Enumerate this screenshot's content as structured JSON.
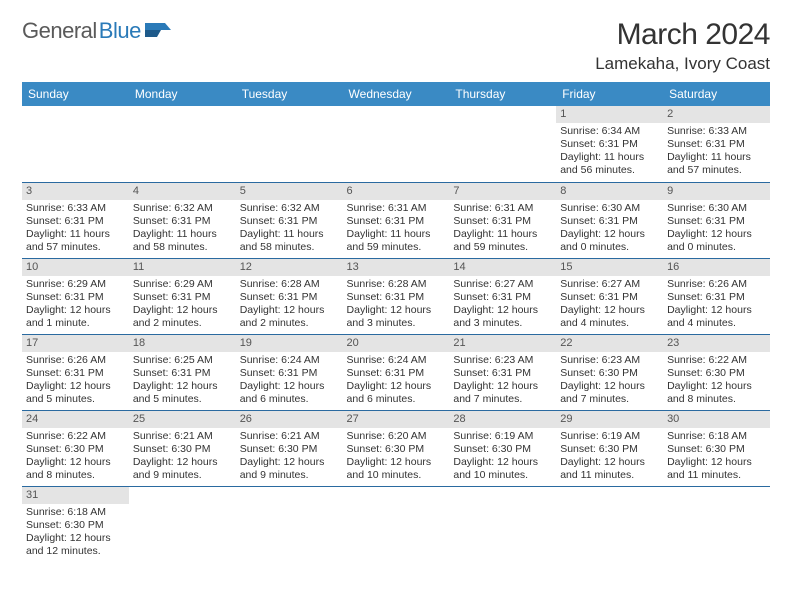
{
  "logo": {
    "part1": "General",
    "part2": "Blue"
  },
  "title": "March 2024",
  "location": "Lamekaha, Ivory Coast",
  "weekdays": [
    "Sunday",
    "Monday",
    "Tuesday",
    "Wednesday",
    "Thursday",
    "Friday",
    "Saturday"
  ],
  "colors": {
    "header_bg": "#3a8ac4",
    "header_text": "#ffffff",
    "daynum_bg": "#e4e4e4",
    "row_border": "#2a6aa0",
    "logo_gray": "#5a5a5a",
    "logo_blue": "#2a7ab8"
  },
  "weeks": [
    [
      null,
      null,
      null,
      null,
      null,
      {
        "n": "1",
        "sr": "Sunrise: 6:34 AM",
        "ss": "Sunset: 6:31 PM",
        "dl": "Daylight: 11 hours and 56 minutes."
      },
      {
        "n": "2",
        "sr": "Sunrise: 6:33 AM",
        "ss": "Sunset: 6:31 PM",
        "dl": "Daylight: 11 hours and 57 minutes."
      }
    ],
    [
      {
        "n": "3",
        "sr": "Sunrise: 6:33 AM",
        "ss": "Sunset: 6:31 PM",
        "dl": "Daylight: 11 hours and 57 minutes."
      },
      {
        "n": "4",
        "sr": "Sunrise: 6:32 AM",
        "ss": "Sunset: 6:31 PM",
        "dl": "Daylight: 11 hours and 58 minutes."
      },
      {
        "n": "5",
        "sr": "Sunrise: 6:32 AM",
        "ss": "Sunset: 6:31 PM",
        "dl": "Daylight: 11 hours and 58 minutes."
      },
      {
        "n": "6",
        "sr": "Sunrise: 6:31 AM",
        "ss": "Sunset: 6:31 PM",
        "dl": "Daylight: 11 hours and 59 minutes."
      },
      {
        "n": "7",
        "sr": "Sunrise: 6:31 AM",
        "ss": "Sunset: 6:31 PM",
        "dl": "Daylight: 11 hours and 59 minutes."
      },
      {
        "n": "8",
        "sr": "Sunrise: 6:30 AM",
        "ss": "Sunset: 6:31 PM",
        "dl": "Daylight: 12 hours and 0 minutes."
      },
      {
        "n": "9",
        "sr": "Sunrise: 6:30 AM",
        "ss": "Sunset: 6:31 PM",
        "dl": "Daylight: 12 hours and 0 minutes."
      }
    ],
    [
      {
        "n": "10",
        "sr": "Sunrise: 6:29 AM",
        "ss": "Sunset: 6:31 PM",
        "dl": "Daylight: 12 hours and 1 minute."
      },
      {
        "n": "11",
        "sr": "Sunrise: 6:29 AM",
        "ss": "Sunset: 6:31 PM",
        "dl": "Daylight: 12 hours and 2 minutes."
      },
      {
        "n": "12",
        "sr": "Sunrise: 6:28 AM",
        "ss": "Sunset: 6:31 PM",
        "dl": "Daylight: 12 hours and 2 minutes."
      },
      {
        "n": "13",
        "sr": "Sunrise: 6:28 AM",
        "ss": "Sunset: 6:31 PM",
        "dl": "Daylight: 12 hours and 3 minutes."
      },
      {
        "n": "14",
        "sr": "Sunrise: 6:27 AM",
        "ss": "Sunset: 6:31 PM",
        "dl": "Daylight: 12 hours and 3 minutes."
      },
      {
        "n": "15",
        "sr": "Sunrise: 6:27 AM",
        "ss": "Sunset: 6:31 PM",
        "dl": "Daylight: 12 hours and 4 minutes."
      },
      {
        "n": "16",
        "sr": "Sunrise: 6:26 AM",
        "ss": "Sunset: 6:31 PM",
        "dl": "Daylight: 12 hours and 4 minutes."
      }
    ],
    [
      {
        "n": "17",
        "sr": "Sunrise: 6:26 AM",
        "ss": "Sunset: 6:31 PM",
        "dl": "Daylight: 12 hours and 5 minutes."
      },
      {
        "n": "18",
        "sr": "Sunrise: 6:25 AM",
        "ss": "Sunset: 6:31 PM",
        "dl": "Daylight: 12 hours and 5 minutes."
      },
      {
        "n": "19",
        "sr": "Sunrise: 6:24 AM",
        "ss": "Sunset: 6:31 PM",
        "dl": "Daylight: 12 hours and 6 minutes."
      },
      {
        "n": "20",
        "sr": "Sunrise: 6:24 AM",
        "ss": "Sunset: 6:31 PM",
        "dl": "Daylight: 12 hours and 6 minutes."
      },
      {
        "n": "21",
        "sr": "Sunrise: 6:23 AM",
        "ss": "Sunset: 6:31 PM",
        "dl": "Daylight: 12 hours and 7 minutes."
      },
      {
        "n": "22",
        "sr": "Sunrise: 6:23 AM",
        "ss": "Sunset: 6:30 PM",
        "dl": "Daylight: 12 hours and 7 minutes."
      },
      {
        "n": "23",
        "sr": "Sunrise: 6:22 AM",
        "ss": "Sunset: 6:30 PM",
        "dl": "Daylight: 12 hours and 8 minutes."
      }
    ],
    [
      {
        "n": "24",
        "sr": "Sunrise: 6:22 AM",
        "ss": "Sunset: 6:30 PM",
        "dl": "Daylight: 12 hours and 8 minutes."
      },
      {
        "n": "25",
        "sr": "Sunrise: 6:21 AM",
        "ss": "Sunset: 6:30 PM",
        "dl": "Daylight: 12 hours and 9 minutes."
      },
      {
        "n": "26",
        "sr": "Sunrise: 6:21 AM",
        "ss": "Sunset: 6:30 PM",
        "dl": "Daylight: 12 hours and 9 minutes."
      },
      {
        "n": "27",
        "sr": "Sunrise: 6:20 AM",
        "ss": "Sunset: 6:30 PM",
        "dl": "Daylight: 12 hours and 10 minutes."
      },
      {
        "n": "28",
        "sr": "Sunrise: 6:19 AM",
        "ss": "Sunset: 6:30 PM",
        "dl": "Daylight: 12 hours and 10 minutes."
      },
      {
        "n": "29",
        "sr": "Sunrise: 6:19 AM",
        "ss": "Sunset: 6:30 PM",
        "dl": "Daylight: 12 hours and 11 minutes."
      },
      {
        "n": "30",
        "sr": "Sunrise: 6:18 AM",
        "ss": "Sunset: 6:30 PM",
        "dl": "Daylight: 12 hours and 11 minutes."
      }
    ],
    [
      {
        "n": "31",
        "sr": "Sunrise: 6:18 AM",
        "ss": "Sunset: 6:30 PM",
        "dl": "Daylight: 12 hours and 12 minutes."
      },
      null,
      null,
      null,
      null,
      null,
      null
    ]
  ]
}
